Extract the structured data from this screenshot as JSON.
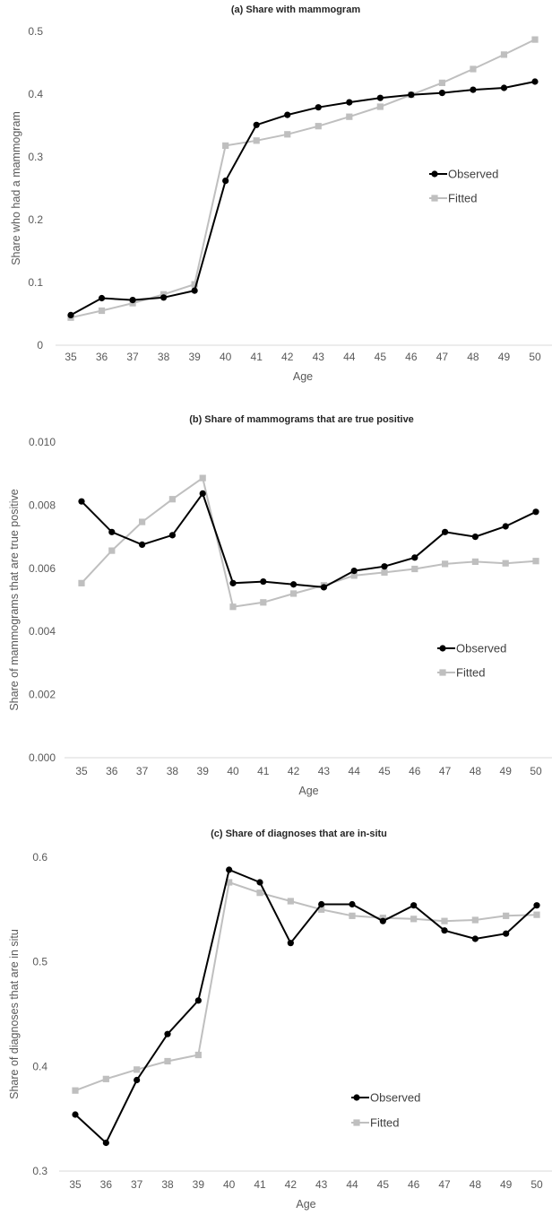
{
  "chart_data": [
    {
      "type": "line",
      "title": "(a) Share with mammogram",
      "xlabel": "Age",
      "ylabel": "Share who had a mammogram",
      "x": [
        35,
        36,
        37,
        38,
        39,
        40,
        41,
        42,
        43,
        44,
        45,
        46,
        47,
        48,
        49,
        50
      ],
      "x_tick_labels": [
        "35",
        "36",
        "37",
        "38",
        "39",
        "40",
        "41",
        "42",
        "43",
        "44",
        "45",
        "46",
        "47",
        "48",
        "49",
        "50"
      ],
      "y_ticks": [
        0,
        0.1,
        0.2,
        0.3,
        0.4,
        0.5
      ],
      "y_tick_labels": [
        "0",
        "0.1",
        "0.2",
        "0.3",
        "0.4",
        "0.5"
      ],
      "ylim": [
        0,
        0.5
      ],
      "grid": false,
      "legend_position": "right-middle",
      "series": [
        {
          "name": "Observed",
          "color": "#000000",
          "marker": "circle",
          "values": [
            0.048,
            0.075,
            0.072,
            0.076,
            0.087,
            0.262,
            0.351,
            0.367,
            0.379,
            0.387,
            0.394,
            0.399,
            0.402,
            0.407,
            0.41,
            0.42
          ]
        },
        {
          "name": "Fitted",
          "color": "#bfbfbf",
          "marker": "square",
          "values": [
            0.044,
            0.055,
            0.067,
            0.081,
            0.097,
            0.318,
            0.326,
            0.336,
            0.349,
            0.364,
            0.38,
            0.399,
            0.418,
            0.44,
            0.463,
            0.487
          ]
        }
      ]
    },
    {
      "type": "line",
      "title": "(b) Share of mammograms that are true positive",
      "xlabel": "Age",
      "ylabel": "Share of mammograms that are true positive",
      "x": [
        35,
        36,
        37,
        38,
        39,
        40,
        41,
        42,
        43,
        44,
        45,
        46,
        47,
        48,
        49,
        50
      ],
      "x_tick_labels": [
        "35",
        "36",
        "37",
        "38",
        "39",
        "40",
        "41",
        "42",
        "43",
        "44",
        "45",
        "46",
        "47",
        "48",
        "49",
        "50"
      ],
      "y_ticks": [
        0,
        0.002,
        0.004,
        0.006,
        0.008,
        0.01
      ],
      "y_tick_labels": [
        "0.000",
        "0.002",
        "0.004",
        "0.006",
        "0.008",
        "0.010"
      ],
      "ylim": [
        0,
        0.01
      ],
      "grid": false,
      "legend_position": "right-lower",
      "series": [
        {
          "name": "Observed",
          "color": "#000000",
          "marker": "circle",
          "values": [
            0.00812,
            0.00715,
            0.00675,
            0.00705,
            0.00837,
            0.00553,
            0.00558,
            0.00549,
            0.0054,
            0.00592,
            0.00606,
            0.00634,
            0.00715,
            0.007,
            0.00733,
            0.00779
          ]
        },
        {
          "name": "Fitted",
          "color": "#bfbfbf",
          "marker": "square",
          "values": [
            0.00553,
            0.00656,
            0.00747,
            0.00819,
            0.00886,
            0.00478,
            0.00492,
            0.0052,
            0.00546,
            0.00577,
            0.00587,
            0.00598,
            0.00614,
            0.00621,
            0.00616,
            0.00623
          ]
        }
      ]
    },
    {
      "type": "line",
      "title": "(c) Share of diagnoses that are in-situ",
      "xlabel": "Age",
      "ylabel": "Share of diagnoses that are in situ",
      "x": [
        35,
        36,
        37,
        38,
        39,
        40,
        41,
        42,
        43,
        44,
        45,
        46,
        47,
        48,
        49,
        50
      ],
      "x_tick_labels": [
        "35",
        "36",
        "37",
        "38",
        "39",
        "40",
        "41",
        "42",
        "43",
        "44",
        "45",
        "46",
        "47",
        "48",
        "49",
        "50"
      ],
      "y_ticks": [
        0.3,
        0.4,
        0.5,
        0.6
      ],
      "y_tick_labels": [
        "0.3",
        "0.4",
        "0.5",
        "0.6"
      ],
      "ylim": [
        0.3,
        0.6
      ],
      "grid": false,
      "legend_position": "center-lower",
      "series": [
        {
          "name": "Observed",
          "color": "#000000",
          "marker": "circle",
          "values": [
            0.354,
            0.327,
            0.387,
            0.431,
            0.463,
            0.588,
            0.576,
            0.518,
            0.555,
            0.555,
            0.539,
            0.554,
            0.53,
            0.522,
            0.527,
            0.554
          ]
        },
        {
          "name": "Fitted",
          "color": "#bfbfbf",
          "marker": "square",
          "values": [
            0.377,
            0.388,
            0.397,
            0.405,
            0.411,
            0.576,
            0.566,
            0.558,
            0.55,
            0.544,
            0.542,
            0.541,
            0.539,
            0.54,
            0.544,
            0.545
          ]
        }
      ]
    }
  ]
}
